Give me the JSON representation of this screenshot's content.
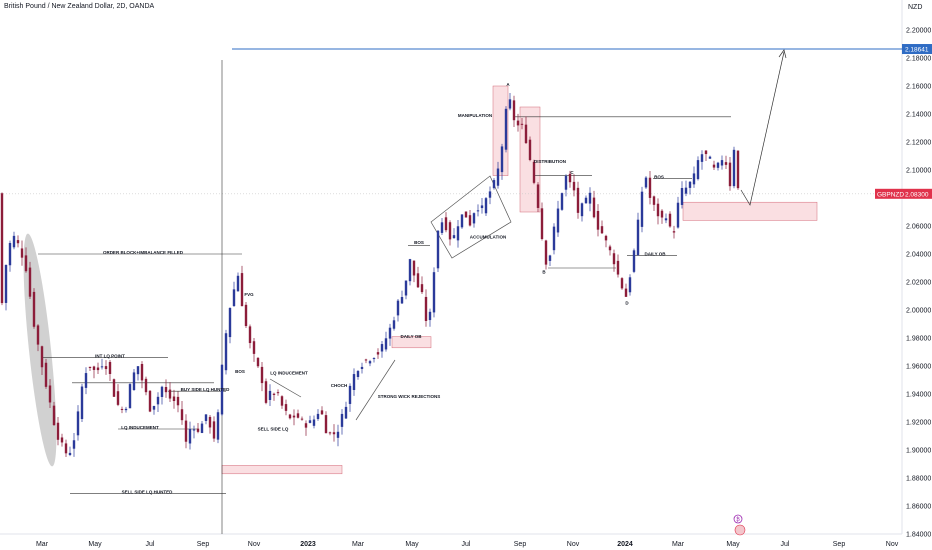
{
  "header": {
    "title": "British Pound / New Zealand Dollar, 2D, OANDA",
    "currency": "NZD"
  },
  "colors": {
    "up": "#2b3a9a",
    "down": "#8c1d3a",
    "zone": "#f5b8bf",
    "target_line": "#2f6cc4",
    "price_tag": "#e0324b",
    "price_line": "#c8c8c8",
    "ellipse": "#bdbdbd"
  },
  "chart_data": {
    "type": "candlestick",
    "symbol": "GBPNZD",
    "interval": "2D",
    "ylim": [
      1.84,
      2.2
    ],
    "y_ticks": [
      "2.20000",
      "2.18000",
      "2.16000",
      "2.14000",
      "2.12000",
      "2.10000",
      "2.06000",
      "2.04000",
      "2.02000",
      "2.00000",
      "1.98000",
      "1.96000",
      "1.94000",
      "1.92000",
      "1.90000",
      "1.88000",
      "1.86000",
      "1.84000"
    ],
    "x_ticks": [
      "Mar",
      "May",
      "Jul",
      "Sep",
      "Nov",
      "2023",
      "Mar",
      "May",
      "Jul",
      "Sep",
      "Nov",
      "2024",
      "Mar",
      "May",
      "Jul",
      "Sep",
      "Nov"
    ],
    "last_price": {
      "symbol": "GBPNZD",
      "value": "2.08300"
    },
    "target_price": {
      "value": "2.18641"
    },
    "path_keypoints": [
      [
        0,
        1.99
      ],
      [
        4,
        2.02
      ],
      [
        8,
        2.045
      ],
      [
        14,
        2.052
      ],
      [
        20,
        2.044
      ],
      [
        26,
        2.03
      ],
      [
        34,
        1.99
      ],
      [
        42,
        1.96
      ],
      [
        48,
        1.94
      ],
      [
        54,
        1.92
      ],
      [
        60,
        1.905
      ],
      [
        66,
        1.898
      ],
      [
        72,
        1.9
      ],
      [
        78,
        1.925
      ],
      [
        84,
        1.955
      ],
      [
        90,
        1.96
      ],
      [
        96,
        1.955
      ],
      [
        102,
        1.962
      ],
      [
        108,
        1.96
      ],
      [
        114,
        1.94
      ],
      [
        120,
        1.928
      ],
      [
        126,
        1.932
      ],
      [
        132,
        1.952
      ],
      [
        138,
        1.96
      ],
      [
        144,
        1.945
      ],
      [
        150,
        1.93
      ],
      [
        156,
        1.935
      ],
      [
        162,
        1.945
      ],
      [
        168,
        1.938
      ],
      [
        174,
        1.935
      ],
      [
        180,
        1.93
      ],
      [
        186,
        1.905
      ],
      [
        192,
        1.92
      ],
      [
        198,
        1.912
      ],
      [
        204,
        1.925
      ],
      [
        210,
        1.918
      ],
      [
        216,
        1.905
      ],
      [
        220,
        1.945
      ],
      [
        224,
        1.972
      ],
      [
        228,
        1.995
      ],
      [
        232,
        2.01
      ],
      [
        238,
        2.025
      ],
      [
        244,
        1.995
      ],
      [
        250,
        1.975
      ],
      [
        256,
        1.962
      ],
      [
        262,
        1.95
      ],
      [
        266,
        1.935
      ],
      [
        272,
        1.942
      ],
      [
        278,
        1.938
      ],
      [
        284,
        1.928
      ],
      [
        290,
        1.922
      ],
      [
        296,
        1.925
      ],
      [
        302,
        1.92
      ],
      [
        308,
        1.918
      ],
      [
        314,
        1.922
      ],
      [
        320,
        1.93
      ],
      [
        326,
        1.915
      ],
      [
        332,
        1.91
      ],
      [
        338,
        1.915
      ],
      [
        344,
        1.928
      ],
      [
        350,
        1.945
      ],
      [
        356,
        1.958
      ],
      [
        362,
        1.962
      ],
      [
        368,
        1.965
      ],
      [
        374,
        1.968
      ],
      [
        380,
        1.97
      ],
      [
        386,
        1.98
      ],
      [
        392,
        1.99
      ],
      [
        398,
        2.005
      ],
      [
        404,
        2.015
      ],
      [
        410,
        2.035
      ],
      [
        416,
        2.02
      ],
      [
        422,
        2.01
      ],
      [
        428,
        1.985
      ],
      [
        432,
        2.008
      ],
      [
        436,
        2.05
      ],
      [
        440,
        2.065
      ],
      [
        446,
        2.06
      ],
      [
        452,
        2.048
      ],
      [
        458,
        2.062
      ],
      [
        464,
        2.07
      ],
      [
        470,
        2.062
      ],
      [
        476,
        2.075
      ],
      [
        482,
        2.072
      ],
      [
        488,
        2.082
      ],
      [
        494,
        2.09
      ],
      [
        500,
        2.105
      ],
      [
        504,
        2.13
      ],
      [
        508,
        2.152
      ],
      [
        512,
        2.145
      ],
      [
        516,
        2.128
      ],
      [
        520,
        2.135
      ],
      [
        526,
        2.122
      ],
      [
        532,
        2.1
      ],
      [
        538,
        2.075
      ],
      [
        544,
        2.04
      ],
      [
        548,
        2.03
      ],
      [
        552,
        2.05
      ],
      [
        556,
        2.065
      ],
      [
        562,
        2.085
      ],
      [
        566,
        2.095
      ],
      [
        570,
        2.09
      ],
      [
        574,
        2.085
      ],
      [
        578,
        2.07
      ],
      [
        584,
        2.075
      ],
      [
        590,
        2.082
      ],
      [
        596,
        2.062
      ],
      [
        602,
        2.055
      ],
      [
        608,
        2.045
      ],
      [
        614,
        2.035
      ],
      [
        620,
        2.02
      ],
      [
        626,
        2.01
      ],
      [
        630,
        2.025
      ],
      [
        636,
        2.05
      ],
      [
        642,
        2.085
      ],
      [
        646,
        2.095
      ],
      [
        650,
        2.08
      ],
      [
        656,
        2.07
      ],
      [
        662,
        2.065
      ],
      [
        668,
        2.07
      ],
      [
        672,
        2.045
      ],
      [
        676,
        2.07
      ],
      [
        682,
        2.085
      ],
      [
        688,
        2.088
      ],
      [
        694,
        2.095
      ],
      [
        700,
        2.112
      ],
      [
        706,
        2.11
      ],
      [
        712,
        2.105
      ],
      [
        716,
        2.095
      ],
      [
        720,
        2.11
      ],
      [
        726,
        2.105
      ],
      [
        730,
        2.09
      ],
      [
        734,
        2.116
      ],
      [
        737,
        2.088
      ],
      [
        740,
        2.083
      ]
    ],
    "zones": [
      {
        "x0": 222,
        "x1": 342,
        "y0": 1.883,
        "y1": 1.889
      },
      {
        "x0": 392,
        "x1": 431,
        "y0": 1.973,
        "y1": 1.981
      },
      {
        "x0": 493,
        "x1": 508,
        "y0": 2.096,
        "y1": 2.16
      },
      {
        "x0": 520,
        "x1": 540,
        "y0": 2.07,
        "y1": 2.145
      },
      {
        "x0": 683,
        "x1": 817,
        "y0": 2.064,
        "y1": 2.077
      }
    ],
    "annotations": [
      {
        "text": "ORDER BLOCK+IMBALANCE FILLED",
        "x": 143,
        "y": 2.04
      },
      {
        "text": "INT LQ POINT",
        "x": 110,
        "y": 1.966
      },
      {
        "text": "LQ INDUCEMENT",
        "x": 140,
        "y": 1.915
      },
      {
        "text": "BUY SIDE LQ HUNTED",
        "x": 205,
        "y": 1.942
      },
      {
        "text": "SELL SIDE LQ HUNTED",
        "x": 147,
        "y": 1.869
      },
      {
        "text": "FVG",
        "x": 249,
        "y": 2.01
      },
      {
        "text": "BOS",
        "x": 240,
        "y": 1.955
      },
      {
        "text": "LQ INDUCEMENT",
        "x": 289,
        "y": 1.954
      },
      {
        "text": "SELL SIDE LQ",
        "x": 273,
        "y": 1.914
      },
      {
        "text": "CHOCH",
        "x": 339,
        "y": 1.945
      },
      {
        "text": "STRONG WICK REJECTIONS",
        "x": 409,
        "y": 1.937
      },
      {
        "text": "BOS",
        "x": 419,
        "y": 2.047
      },
      {
        "text": "DAILY OB",
        "x": 411,
        "y": 1.98
      },
      {
        "text": "ACCUMULATION",
        "x": 488,
        "y": 2.051
      },
      {
        "text": "MANIPULATION",
        "x": 475,
        "y": 2.138
      },
      {
        "text": "DISTRIBUTION",
        "x": 550,
        "y": 2.105
      },
      {
        "text": "BOS",
        "x": 659,
        "y": 2.094
      },
      {
        "text": "DAILY OB",
        "x": 655,
        "y": 2.039
      },
      {
        "text": "A",
        "x": 508,
        "y": 2.16
      },
      {
        "text": "B",
        "x": 544,
        "y": 2.026
      },
      {
        "text": "C",
        "x": 572,
        "y": 2.097
      },
      {
        "text": "D",
        "x": 627,
        "y": 2.004
      }
    ],
    "legend_icon_text": "₿"
  }
}
